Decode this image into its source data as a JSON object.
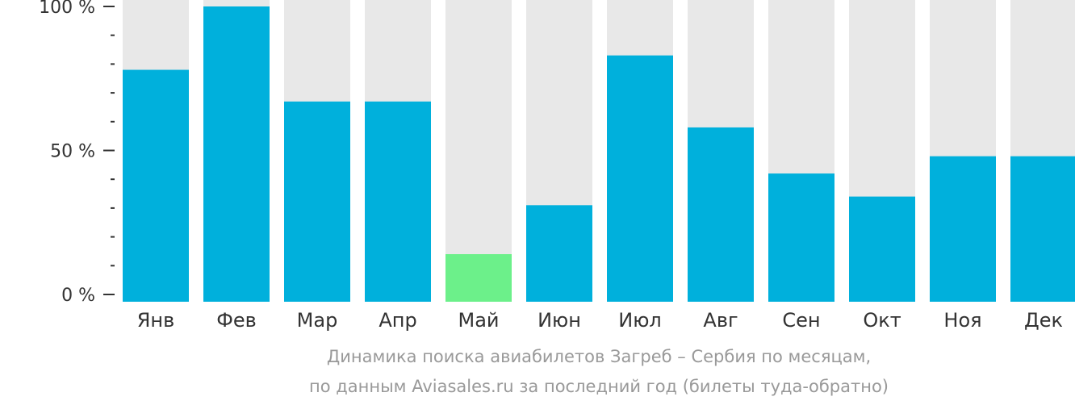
{
  "chart_data": {
    "type": "bar",
    "categories": [
      "Янв",
      "Фев",
      "Мар",
      "Апр",
      "Май",
      "Июн",
      "Июл",
      "Авг",
      "Сен",
      "Окт",
      "Ноя",
      "Дек"
    ],
    "values": [
      78,
      100,
      67,
      67,
      14,
      31,
      83,
      58,
      42,
      34,
      48,
      48
    ],
    "highlight_index": 4,
    "ylim": [
      0,
      100
    ],
    "y_ticks": [
      {
        "value": 0,
        "label": "0 %"
      },
      {
        "value": 50,
        "label": "50 %"
      },
      {
        "value": 100,
        "label": "100 %"
      }
    ],
    "minor_ticks": [
      10,
      20,
      30,
      40,
      60,
      70,
      80,
      90
    ],
    "colors": {
      "bar": "#00b0dc",
      "highlight": "#6cf08a",
      "background_bar": "#e8e8e8",
      "text": "#333333",
      "caption": "#999999"
    },
    "caption": [
      "Динамика поиска авиабилетов Загреб – Сербия по месяцам,",
      "по данным Aviasales.ru за последний год (билеты туда-обратно)"
    ]
  }
}
